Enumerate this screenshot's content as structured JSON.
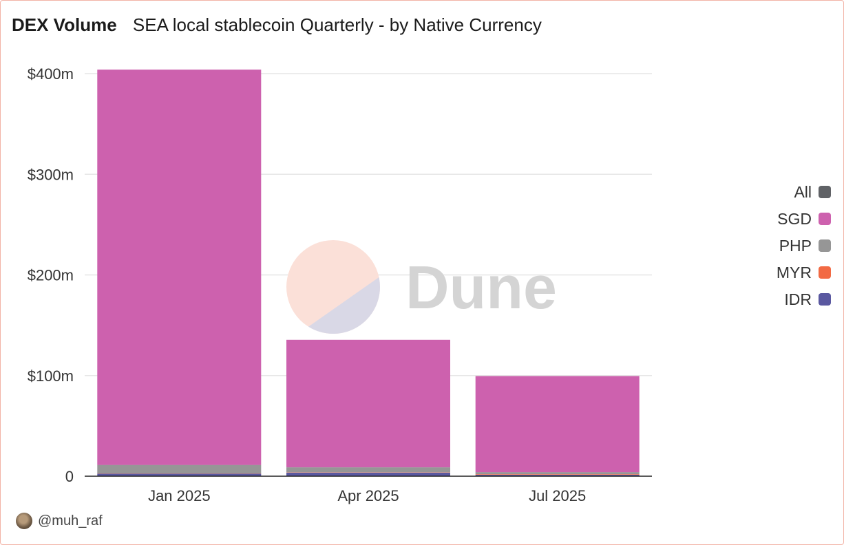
{
  "header": {
    "title": "DEX Volume",
    "subtitle": "SEA local stablecoin Quarterly - by Native Currency"
  },
  "watermark": {
    "text": "Dune"
  },
  "footer": {
    "author": "@muh_raf",
    "avatar_icon": "avatar-photo"
  },
  "chart_data": {
    "type": "bar",
    "stacked": true,
    "title": "DEX Volume",
    "subtitle": "SEA local stablecoin Quarterly - by Native Currency",
    "categories": [
      "Jan 2025",
      "Apr 2025",
      "Jul 2025"
    ],
    "y_ticks": [
      0,
      100,
      200,
      300,
      400
    ],
    "y_tick_labels": [
      "0",
      "$100m",
      "$200m",
      "$300m",
      "$400m"
    ],
    "ylim": [
      0,
      420
    ],
    "y_unit": "millions USD",
    "grid": true,
    "legend_position": "right",
    "legend": [
      {
        "name": "All",
        "color": "#606266"
      },
      {
        "name": "SGD",
        "color": "#cd61ae"
      },
      {
        "name": "PHP",
        "color": "#969696"
      },
      {
        "name": "MYR",
        "color": "#f26a44"
      },
      {
        "name": "IDR",
        "color": "#5a58a0"
      }
    ],
    "series": [
      {
        "name": "IDR",
        "color": "#5a58a0",
        "values": [
          2.5,
          3.5,
          1.5
        ]
      },
      {
        "name": "MYR",
        "color": "#f26a44",
        "values": [
          0.2,
          0.3,
          0.5
        ]
      },
      {
        "name": "PHP",
        "color": "#969696",
        "values": [
          8.5,
          5.0,
          2.0
        ]
      },
      {
        "name": "SGD",
        "color": "#cd61ae",
        "values": [
          392.8,
          126.7,
          95.5
        ]
      }
    ]
  }
}
